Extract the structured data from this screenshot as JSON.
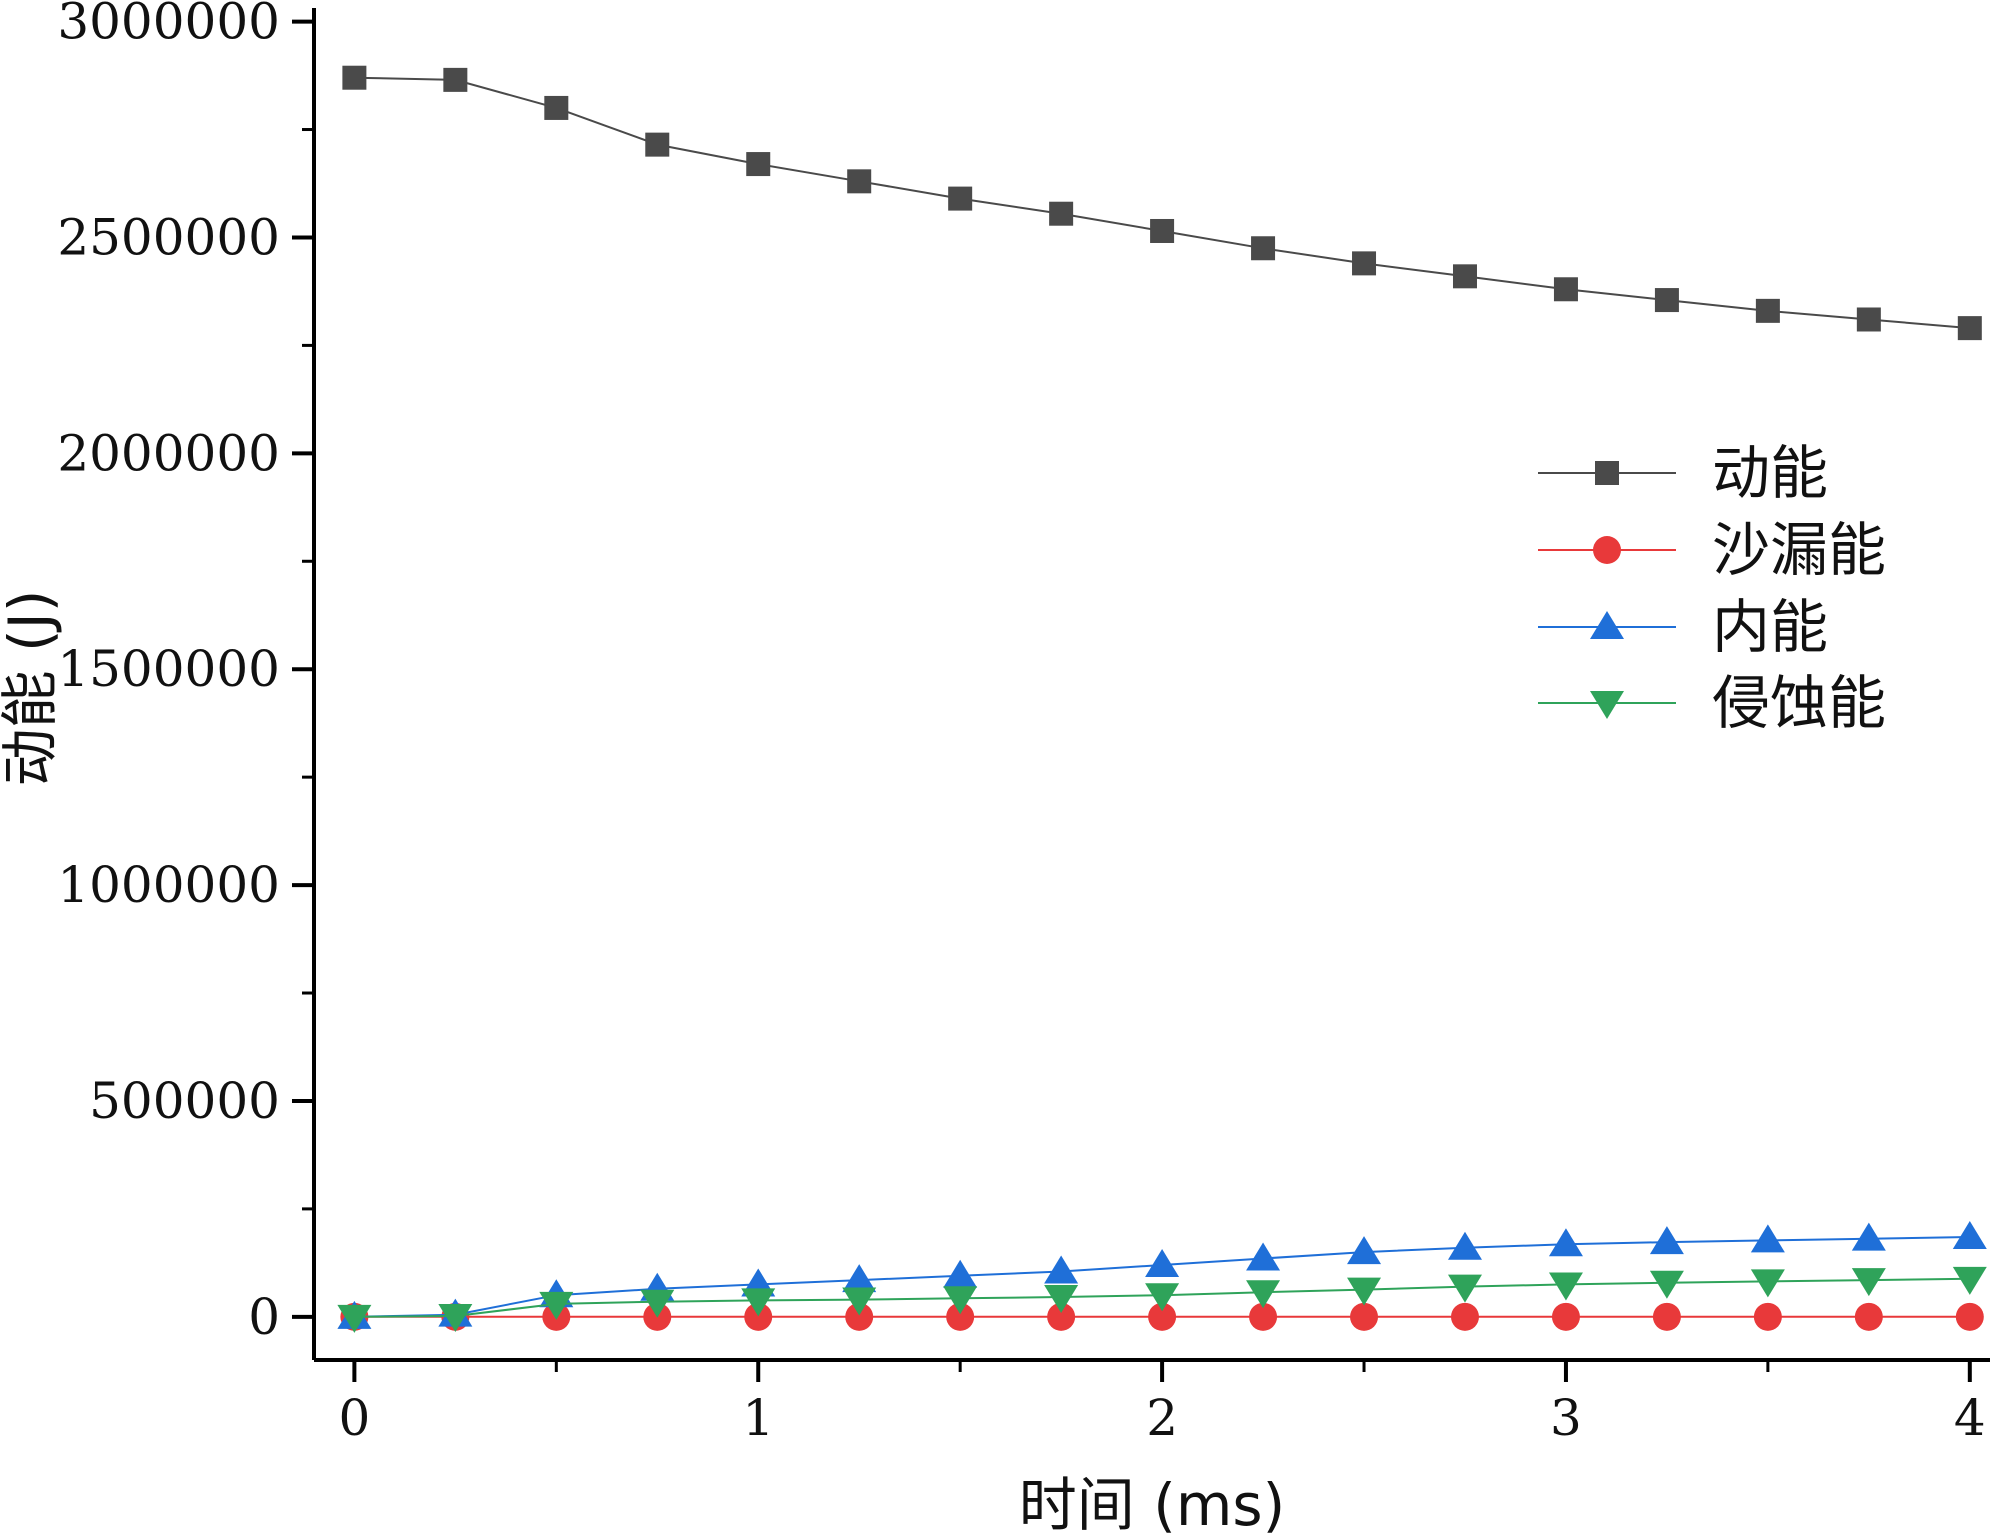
{
  "chart_data": {
    "type": "line",
    "title": "",
    "xlabel": "时间 (ms)",
    "ylabel": "动能 (J)",
    "xlim": [
      -0.1,
      4.05
    ],
    "ylim": [
      -100000,
      3050000
    ],
    "xticks": [
      0,
      1,
      2,
      3,
      4
    ],
    "xtick_labels": [
      "0",
      "1",
      "2",
      "3",
      "4"
    ],
    "yticks": [
      0,
      500000,
      1000000,
      1500000,
      2000000,
      2500000,
      3000000
    ],
    "ytick_labels": [
      "0",
      "500000",
      "1000000",
      "1500000",
      "2000000",
      "2500000",
      "3000000"
    ],
    "grid": false,
    "legend_position": "right",
    "x": [
      0,
      0.25,
      0.5,
      0.75,
      1,
      1.25,
      1.5,
      1.75,
      2,
      2.25,
      2.5,
      2.75,
      3,
      3.25,
      3.5,
      3.75,
      4
    ],
    "series": [
      {
        "name": "动能",
        "color": "#4a4a4a",
        "marker": "square",
        "values": [
          2870000,
          2865000,
          2800000,
          2715000,
          2670000,
          2630000,
          2590000,
          2555000,
          2515000,
          2475000,
          2440000,
          2410000,
          2380000,
          2355000,
          2330000,
          2310000,
          2290000
        ]
      },
      {
        "name": "沙漏能",
        "color": "#e8393a",
        "marker": "circle",
        "values": [
          0,
          0,
          0,
          0,
          0,
          0,
          0,
          0,
          0,
          0,
          0,
          0,
          0,
          0,
          0,
          0,
          0
        ]
      },
      {
        "name": "内能",
        "color": "#1f6fd8",
        "marker": "triangle-up",
        "values": [
          0,
          5000,
          50000,
          65000,
          75000,
          85000,
          95000,
          105000,
          120000,
          135000,
          150000,
          160000,
          168000,
          173000,
          177000,
          181000,
          185000
        ]
      },
      {
        "name": "侵蚀能",
        "color": "#2fa35a",
        "marker": "triangle-down",
        "values": [
          0,
          2000,
          30000,
          35000,
          38000,
          40000,
          43000,
          46000,
          50000,
          57000,
          63000,
          70000,
          75000,
          79000,
          82000,
          85000,
          88000
        ]
      }
    ]
  }
}
